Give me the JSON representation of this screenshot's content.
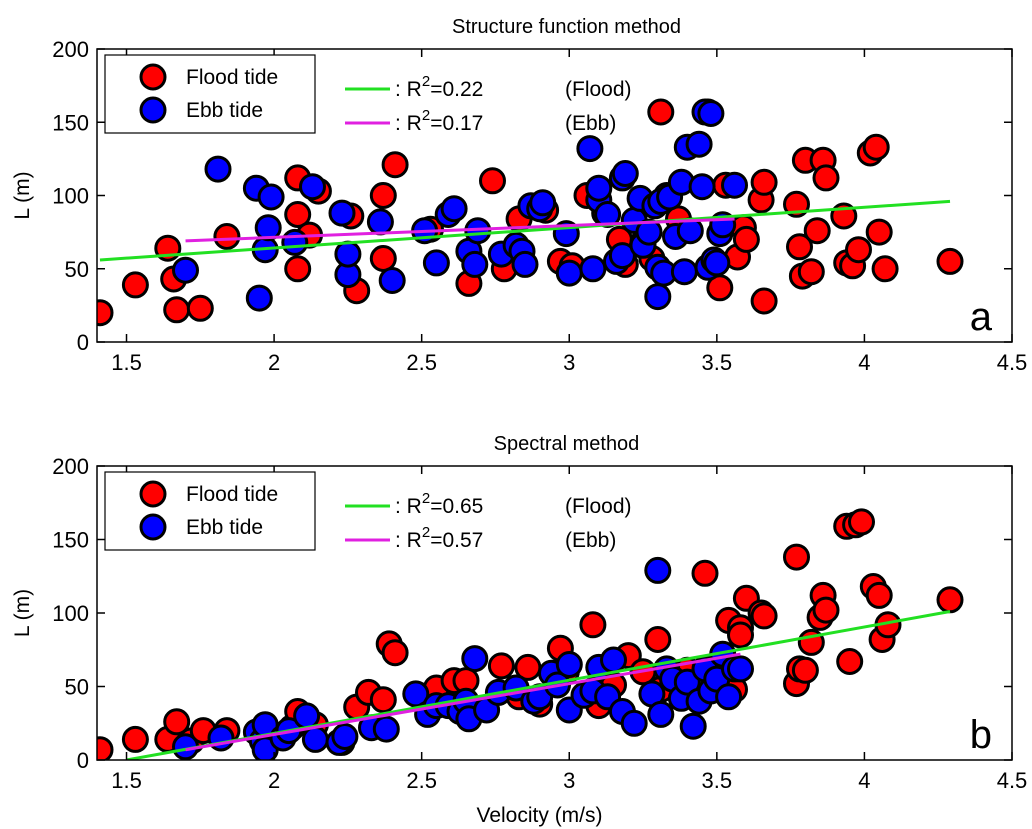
{
  "chart_data": [
    {
      "type": "scatter",
      "panel_letter": "a",
      "title": "Structure function method",
      "xlabel": "",
      "ylabel": "L (m)",
      "xlim": [
        1.4,
        4.5
      ],
      "ylim": [
        0,
        200
      ],
      "xticks": [
        "1.5",
        "2",
        "2.5",
        "3",
        "3.5",
        "4",
        "4.5"
      ],
      "yticks": [
        "0",
        "50",
        "100",
        "150",
        "200"
      ],
      "legend_markers": [
        "Flood tide",
        "Ebb tide"
      ],
      "legend_lines": [
        {
          "prefix": ": R",
          "sup": "2",
          "value": "=0.22",
          "tag": "(Flood)"
        },
        {
          "prefix": ": R",
          "sup": "2",
          "value": "=0.17",
          "tag": "(Ebb)"
        }
      ],
      "colors": {
        "flood": "#ff0000",
        "ebb": "#0000ff",
        "flood_fit": "#22e022",
        "ebb_fit": "#e020e0"
      },
      "series": [
        {
          "name": "Flood tide",
          "points": [
            [
              1.41,
              20
            ],
            [
              1.53,
              39
            ],
            [
              1.64,
              64
            ],
            [
              1.66,
              43
            ],
            [
              1.67,
              22
            ],
            [
              1.75,
              23
            ],
            [
              1.84,
              72
            ],
            [
              2.08,
              112
            ],
            [
              2.08,
              87
            ],
            [
              2.08,
              50
            ],
            [
              2.12,
              73
            ],
            [
              2.15,
              103
            ],
            [
              2.26,
              86
            ],
            [
              2.28,
              35
            ],
            [
              2.37,
              100
            ],
            [
              2.37,
              57
            ],
            [
              2.41,
              121
            ],
            [
              2.53,
              77
            ],
            [
              2.66,
              40
            ],
            [
              2.74,
              110
            ],
            [
              2.78,
              50
            ],
            [
              2.83,
              84
            ],
            [
              2.92,
              90
            ],
            [
              2.97,
              55
            ],
            [
              3.01,
              52
            ],
            [
              3.06,
              100
            ],
            [
              3.12,
              88
            ],
            [
              3.17,
              70
            ],
            [
              3.19,
              53
            ],
            [
              3.25,
              68
            ],
            [
              3.28,
              57
            ],
            [
              3.31,
              157
            ],
            [
              3.33,
              100
            ],
            [
              3.37,
              84
            ],
            [
              3.47,
              157
            ],
            [
              3.51,
              37
            ],
            [
              3.53,
              107
            ],
            [
              3.57,
              58
            ],
            [
              3.59,
              78
            ],
            [
              3.6,
              70
            ],
            [
              3.65,
              97
            ],
            [
              3.66,
              109
            ],
            [
              3.66,
              28
            ],
            [
              3.77,
              94
            ],
            [
              3.78,
              65
            ],
            [
              3.79,
              45
            ],
            [
              3.8,
              124
            ],
            [
              3.82,
              48
            ],
            [
              3.84,
              76
            ],
            [
              3.86,
              124
            ],
            [
              3.87,
              112
            ],
            [
              3.93,
              86
            ],
            [
              3.94,
              54
            ],
            [
              3.96,
              52
            ],
            [
              3.98,
              63
            ],
            [
              4.02,
              129
            ],
            [
              4.04,
              133
            ],
            [
              4.05,
              75
            ],
            [
              4.07,
              50
            ],
            [
              4.29,
              55
            ]
          ]
        },
        {
          "name": "Ebb tide",
          "points": [
            [
              1.7,
              49
            ],
            [
              1.81,
              118
            ],
            [
              1.94,
              105
            ],
            [
              1.95,
              30
            ],
            [
              1.97,
              63
            ],
            [
              1.98,
              78
            ],
            [
              1.99,
              99
            ],
            [
              2.07,
              68
            ],
            [
              2.13,
              106
            ],
            [
              2.23,
              88
            ],
            [
              2.25,
              46
            ],
            [
              2.25,
              60
            ],
            [
              2.36,
              82
            ],
            [
              2.4,
              42
            ],
            [
              2.51,
              76
            ],
            [
              2.55,
              54
            ],
            [
              2.59,
              87
            ],
            [
              2.61,
              91
            ],
            [
              2.66,
              62
            ],
            [
              2.68,
              53
            ],
            [
              2.69,
              76
            ],
            [
              2.77,
              60
            ],
            [
              2.82,
              66
            ],
            [
              2.84,
              62
            ],
            [
              2.85,
              53
            ],
            [
              2.87,
              93
            ],
            [
              2.9,
              91
            ],
            [
              2.91,
              95
            ],
            [
              2.99,
              74
            ],
            [
              3.0,
              47
            ],
            [
              3.07,
              132
            ],
            [
              3.08,
              50
            ],
            [
              3.1,
              97
            ],
            [
              3.1,
              105
            ],
            [
              3.13,
              87
            ],
            [
              3.16,
              55
            ],
            [
              3.18,
              59
            ],
            [
              3.18,
              112
            ],
            [
              3.19,
              115
            ],
            [
              3.22,
              83
            ],
            [
              3.24,
              98
            ],
            [
              3.25,
              66
            ],
            [
              3.27,
              75
            ],
            [
              3.29,
              93
            ],
            [
              3.3,
              31
            ],
            [
              3.3,
              51
            ],
            [
              3.31,
              96
            ],
            [
              3.32,
              47
            ],
            [
              3.34,
              99
            ],
            [
              3.36,
              72
            ],
            [
              3.38,
              109
            ],
            [
              3.39,
              48
            ],
            [
              3.4,
              133
            ],
            [
              3.41,
              76
            ],
            [
              3.44,
              135
            ],
            [
              3.45,
              106
            ],
            [
              3.46,
              157
            ],
            [
              3.47,
              51
            ],
            [
              3.48,
              156
            ],
            [
              3.49,
              56
            ],
            [
              3.5,
              54
            ],
            [
              3.51,
              74
            ],
            [
              3.52,
              80
            ],
            [
              3.56,
              107
            ]
          ]
        }
      ],
      "fits": [
        {
          "name": "Flood fit",
          "x": [
            1.41,
            4.29
          ],
          "y": [
            56,
            96
          ]
        },
        {
          "name": "Ebb fit",
          "x": [
            1.7,
            3.56
          ],
          "y": [
            69,
            84
          ]
        }
      ]
    },
    {
      "type": "scatter",
      "panel_letter": "b",
      "title": "Spectral method",
      "xlabel": "Velocity (m/s)",
      "ylabel": "L (m)",
      "xlim": [
        1.4,
        4.5
      ],
      "ylim": [
        0,
        200
      ],
      "xticks": [
        "1.5",
        "2",
        "2.5",
        "3",
        "3.5",
        "4",
        "4.5"
      ],
      "yticks": [
        "0",
        "50",
        "100",
        "150",
        "200"
      ],
      "legend_markers": [
        "Flood tide",
        "Ebb tide"
      ],
      "legend_lines": [
        {
          "prefix": ": R",
          "sup": "2",
          "value": "=0.65",
          "tag": "(Flood)"
        },
        {
          "prefix": ": R",
          "sup": "2",
          "value": "=0.57",
          "tag": "(Ebb)"
        }
      ],
      "colors": {
        "flood": "#ff0000",
        "ebb": "#0000ff",
        "flood_fit": "#22e022",
        "ebb_fit": "#e020e0"
      },
      "series": [
        {
          "name": "Flood tide",
          "points": [
            [
              1.41,
              7
            ],
            [
              1.53,
              14
            ],
            [
              1.64,
              14
            ],
            [
              1.67,
              26
            ],
            [
              1.72,
              13
            ],
            [
              1.76,
              20
            ],
            [
              1.84,
              20
            ],
            [
              2.06,
              22
            ],
            [
              2.08,
              33
            ],
            [
              2.14,
              24
            ],
            [
              2.23,
              12
            ],
            [
              2.28,
              36
            ],
            [
              2.32,
              46
            ],
            [
              2.37,
              41
            ],
            [
              2.39,
              79
            ],
            [
              2.41,
              73
            ],
            [
              2.49,
              44
            ],
            [
              2.55,
              49
            ],
            [
              2.61,
              54
            ],
            [
              2.65,
              54
            ],
            [
              2.77,
              64
            ],
            [
              2.83,
              43
            ],
            [
              2.86,
              63
            ],
            [
              2.9,
              38
            ],
            [
              2.97,
              76
            ],
            [
              2.99,
              60
            ],
            [
              3.08,
              92
            ],
            [
              3.1,
              37
            ],
            [
              3.15,
              51
            ],
            [
              3.2,
              71
            ],
            [
              3.25,
              60
            ],
            [
              3.3,
              82
            ],
            [
              3.31,
              48
            ],
            [
              3.4,
              61
            ],
            [
              3.46,
              127
            ],
            [
              3.5,
              55
            ],
            [
              3.53,
              64
            ],
            [
              3.54,
              95
            ],
            [
              3.56,
              48
            ],
            [
              3.58,
              90
            ],
            [
              3.58,
              85
            ],
            [
              3.6,
              110
            ],
            [
              3.65,
              100
            ],
            [
              3.66,
              98
            ],
            [
              3.77,
              138
            ],
            [
              3.77,
              52
            ],
            [
              3.78,
              62
            ],
            [
              3.8,
              61
            ],
            [
              3.82,
              80
            ],
            [
              3.85,
              97
            ],
            [
              3.86,
              112
            ],
            [
              3.87,
              102
            ],
            [
              3.94,
              159
            ],
            [
              3.95,
              67
            ],
            [
              3.97,
              160
            ],
            [
              3.99,
              162
            ],
            [
              4.03,
              118
            ],
            [
              4.05,
              112
            ],
            [
              4.06,
              82
            ],
            [
              4.08,
              92
            ],
            [
              4.29,
              109
            ]
          ]
        },
        {
          "name": "Ebb tide",
          "points": [
            [
              1.7,
              9
            ],
            [
              1.82,
              15
            ],
            [
              1.94,
              19
            ],
            [
              1.96,
              13
            ],
            [
              1.97,
              7
            ],
            [
              1.97,
              24
            ],
            [
              2.03,
              15
            ],
            [
              2.05,
              20
            ],
            [
              2.11,
              30
            ],
            [
              2.14,
              14
            ],
            [
              2.22,
              12
            ],
            [
              2.24,
              16
            ],
            [
              2.33,
              22
            ],
            [
              2.38,
              21
            ],
            [
              2.48,
              45
            ],
            [
              2.52,
              31
            ],
            [
              2.55,
              37
            ],
            [
              2.59,
              37
            ],
            [
              2.63,
              33
            ],
            [
              2.65,
              40
            ],
            [
              2.66,
              28
            ],
            [
              2.68,
              69
            ],
            [
              2.72,
              34
            ],
            [
              2.76,
              46
            ],
            [
              2.82,
              49
            ],
            [
              2.88,
              40
            ],
            [
              2.9,
              43
            ],
            [
              2.94,
              59
            ],
            [
              2.96,
              51
            ],
            [
              3.0,
              34
            ],
            [
              3.0,
              65
            ],
            [
              3.05,
              44
            ],
            [
              3.08,
              47
            ],
            [
              3.1,
              63
            ],
            [
              3.13,
              43
            ],
            [
              3.15,
              68
            ],
            [
              3.18,
              33
            ],
            [
              3.22,
              25
            ],
            [
              3.28,
              45
            ],
            [
              3.3,
              129
            ],
            [
              3.31,
              31
            ],
            [
              3.33,
              62
            ],
            [
              3.35,
              55
            ],
            [
              3.38,
              42
            ],
            [
              3.4,
              53
            ],
            [
              3.42,
              23
            ],
            [
              3.44,
              40
            ],
            [
              3.46,
              62
            ],
            [
              3.48,
              47
            ],
            [
              3.5,
              55
            ],
            [
              3.52,
              72
            ],
            [
              3.54,
              43
            ],
            [
              3.56,
              62
            ],
            [
              3.58,
              62
            ]
          ]
        }
      ],
      "fits": [
        {
          "name": "Flood fit",
          "x": [
            1.5,
            4.29
          ],
          "y": [
            0,
            101
          ]
        },
        {
          "name": "Ebb fit",
          "x": [
            1.7,
            3.58
          ],
          "y": [
            7,
            72
          ]
        }
      ]
    }
  ]
}
